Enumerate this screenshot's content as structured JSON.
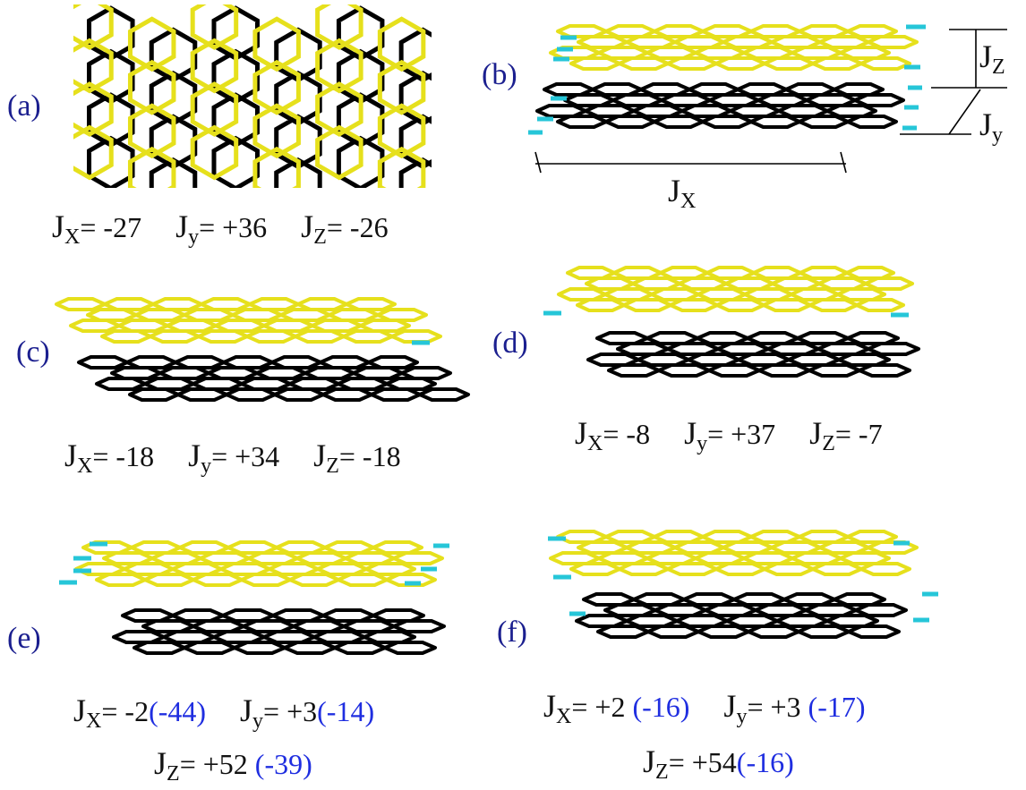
{
  "colors": {
    "upper_layer": "#e6e01c",
    "lower_layer": "#000000",
    "edge_h": "#26c6d8",
    "label": "#1b1f8f",
    "paren_value": "#1f2ee0"
  },
  "panels": {
    "a": {
      "label": "(a)",
      "jx": "-27",
      "jy": "+36",
      "jz": "-26"
    },
    "b": {
      "label": "(b)",
      "ax_x": "X",
      "ax_y": "y",
      "ax_z": "Z"
    },
    "c": {
      "label": "(c)",
      "jx": "-18",
      "jy": "+34",
      "jz": "-18"
    },
    "d": {
      "label": "(d)",
      "jx": "-8",
      "jy": "+37",
      "jz": "-7"
    },
    "e": {
      "label": "(e)",
      "jx": "-2",
      "jx_alt": "(-44)",
      "jy": "+3",
      "jy_alt": "(-14)",
      "jz": "+52",
      "jz_alt": "(-39)"
    },
    "f": {
      "label": "(f)",
      "jx": "+2",
      "jx_alt": "(-16)",
      "jy": "+3",
      "jy_alt": "(-17)",
      "jz": "+54",
      "jz_alt": "(-16)"
    }
  },
  "symbols": {
    "J": "J",
    "sub_x": "X",
    "sub_y": "y",
    "sub_z": "Z",
    "eq": "="
  }
}
